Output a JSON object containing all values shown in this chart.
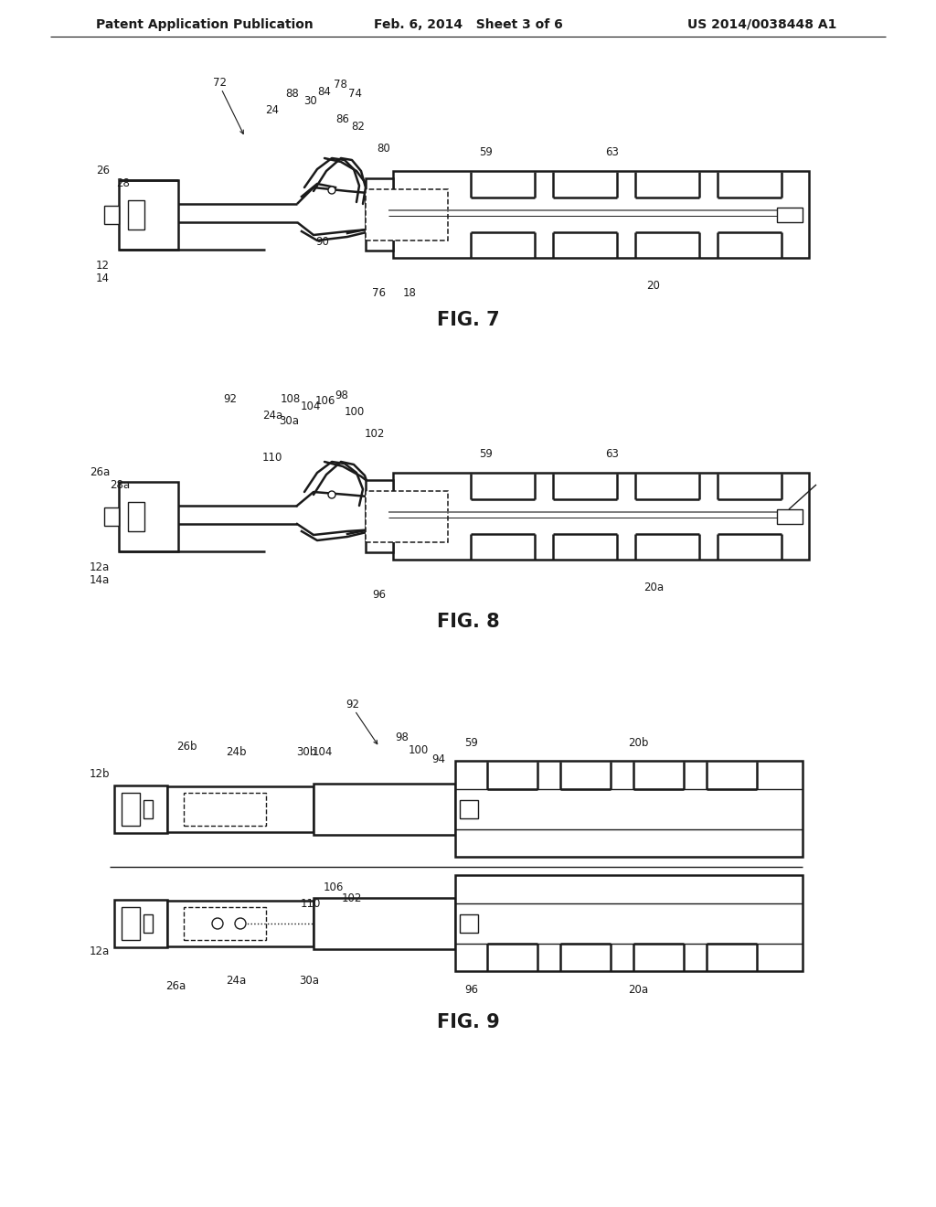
{
  "background_color": "#ffffff",
  "header_left": "Patent Application Publication",
  "header_center": "Feb. 6, 2014   Sheet 3 of 6",
  "header_right": "US 2014/0038448 A1",
  "fig7_label": "FIG. 7",
  "fig8_label": "FIG. 8",
  "fig9_label": "FIG. 9",
  "text_color": "#1a1a1a",
  "line_color": "#1a1a1a",
  "header_fontsize": 10,
  "fig_label_fontsize": 15,
  "ref_fontsize": 8.5,
  "lw_main": 1.8,
  "lw_thin": 1.0,
  "lw_dashed": 1.1
}
